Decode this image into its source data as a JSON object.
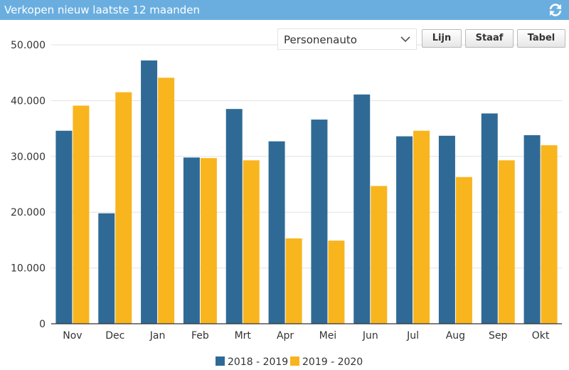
{
  "header": {
    "title": "Verkopen nieuw laatste 12 maanden",
    "refresh_icon": "refresh-icon"
  },
  "controls": {
    "select_value": "Personenauto",
    "chevron_icon": "chevron-down-icon",
    "buttons": [
      "Lijn",
      "Staaf",
      "Tabel"
    ]
  },
  "colors": {
    "series1": "#2f6a96",
    "series2": "#f9b51e",
    "header": "#6aaee0"
  },
  "chart_data": {
    "type": "bar",
    "categories": [
      "Nov",
      "Dec",
      "Jan",
      "Feb",
      "Mrt",
      "Apr",
      "Mei",
      "Jun",
      "Jul",
      "Aug",
      "Sep",
      "Okt"
    ],
    "series": [
      {
        "name": "2018 - 2019",
        "values": [
          34600,
          19800,
          47200,
          29800,
          38500,
          32700,
          36600,
          41100,
          33600,
          33700,
          37700,
          33800
        ]
      },
      {
        "name": "2019 - 2020",
        "values": [
          39100,
          41500,
          44100,
          29700,
          29300,
          15300,
          14900,
          24700,
          34600,
          26300,
          29300,
          32000
        ]
      }
    ],
    "ylim": [
      0,
      50000
    ],
    "yticks": [
      0,
      10000,
      20000,
      30000,
      40000,
      50000
    ],
    "ytick_labels": [
      "0",
      "10.000",
      "20.000",
      "30.000",
      "40.000",
      "50.000"
    ],
    "grid": true,
    "legend": "bottom-center"
  }
}
